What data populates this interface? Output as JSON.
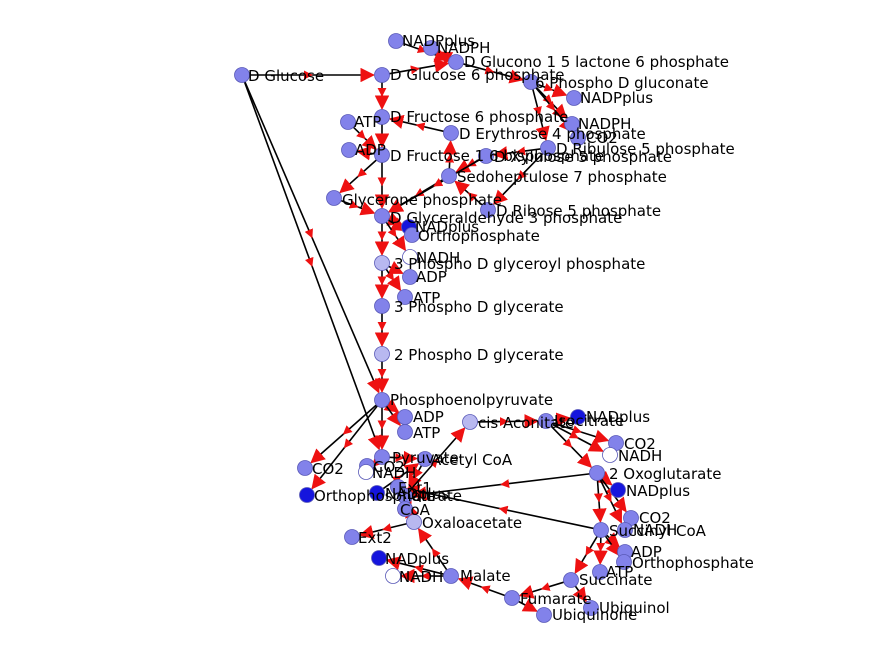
{
  "colors": {
    "edge": "#000000",
    "arrow": "#ee1111",
    "node_default": "#8282ea",
    "node_light": "#b8b8f0",
    "node_dark": "#1515dd",
    "node_white": "#ffffff",
    "node_stroke": "#5a5ab8"
  },
  "nodes": [
    {
      "id": "D_Glucose",
      "label": "D Glucose",
      "shade": "node_default"
    },
    {
      "id": "G6P",
      "label": "D Glucose 6 phosphate",
      "shade": "node_default"
    },
    {
      "id": "NADPplus1",
      "label": "NADPplus",
      "shade": "node_default"
    },
    {
      "id": "NADPH1",
      "label": "NADPH",
      "shade": "node_default"
    },
    {
      "id": "GL6P",
      "label": "D Glucono 1 5 lactone 6 phosphate",
      "shade": "node_default"
    },
    {
      "id": "PG6",
      "label": "6 Phospho D gluconate",
      "shade": "node_default"
    },
    {
      "id": "NADPplus2",
      "label": "NADPplus",
      "shade": "node_default"
    },
    {
      "id": "NADPH2",
      "label": "NADPH",
      "shade": "node_default"
    },
    {
      "id": "CO2a",
      "label": "CO2",
      "shade": "node_default"
    },
    {
      "id": "Ru5P",
      "label": "D Ribulose 5 phosphate",
      "shade": "node_default"
    },
    {
      "id": "Xu5P",
      "label": "D Xylulose 5 phosphate",
      "shade": "node_default"
    },
    {
      "id": "F6P",
      "label": "D Fructose 6 phosphate",
      "shade": "node_default"
    },
    {
      "id": "ATP1",
      "label": "ATP",
      "shade": "node_default"
    },
    {
      "id": "ADP1",
      "label": "ADP",
      "shade": "node_default"
    },
    {
      "id": "FBP",
      "label": "D Fructose 1 6 bisphosphate",
      "shade": "node_default"
    },
    {
      "id": "E4P",
      "label": "D Erythrose 4 phosphate",
      "shade": "node_default"
    },
    {
      "id": "S7P",
      "label": "Sedoheptulose 7 phosphate",
      "shade": "node_default"
    },
    {
      "id": "DHAP",
      "label": "Glycerone phosphate",
      "shade": "node_default"
    },
    {
      "id": "GAP",
      "label": "D Glyceraldehyde 3 phosphate",
      "shade": "node_default"
    },
    {
      "id": "R5P",
      "label": "D Ribose 5 phosphate",
      "shade": "node_default"
    },
    {
      "id": "NADplus1",
      "label": "NADplus",
      "shade": "node_dark"
    },
    {
      "id": "Pi1",
      "label": "Orthophosphate",
      "shade": "node_default"
    },
    {
      "id": "NADH1",
      "label": "NADH",
      "shade": "node_white"
    },
    {
      "id": "BPG",
      "label": "3 Phospho D glyceroyl phosphate",
      "shade": "node_light"
    },
    {
      "id": "ADP2",
      "label": "ADP",
      "shade": "node_default"
    },
    {
      "id": "ATP2",
      "label": "ATP",
      "shade": "node_default"
    },
    {
      "id": "PG3",
      "label": "3 Phospho D glycerate",
      "shade": "node_default"
    },
    {
      "id": "PG2",
      "label": "2 Phospho D glycerate",
      "shade": "node_light"
    },
    {
      "id": "PEP",
      "label": "Phosphoenolpyruvate",
      "shade": "node_default"
    },
    {
      "id": "ADP3",
      "label": "ADP",
      "shade": "node_default"
    },
    {
      "id": "ATP3",
      "label": "ATP",
      "shade": "node_default"
    },
    {
      "id": "CisAc",
      "label": "cis Aconitate",
      "shade": "node_light"
    },
    {
      "id": "Isocit",
      "label": "Isocitrate",
      "shade": "node_default"
    },
    {
      "id": "NADplus2",
      "label": "NADplus",
      "shade": "node_dark"
    },
    {
      "id": "CO2b",
      "label": "CO2",
      "shade": "node_default"
    },
    {
      "id": "NADH2",
      "label": "NADH",
      "shade": "node_white"
    },
    {
      "id": "OxoGlu",
      "label": "2 Oxoglutarate",
      "shade": "node_default"
    },
    {
      "id": "NADplus3",
      "label": "NADplus",
      "shade": "node_dark"
    },
    {
      "id": "CO2c",
      "label": "CO2",
      "shade": "node_default"
    },
    {
      "id": "NADH3",
      "label": "NADH",
      "shade": "node_default"
    },
    {
      "id": "SucCoA",
      "label": "Succinyl CoA",
      "shade": "node_default"
    },
    {
      "id": "ADP4",
      "label": "ADP",
      "shade": "node_default"
    },
    {
      "id": "Pi2",
      "label": "Orthophosphate",
      "shade": "node_default"
    },
    {
      "id": "ATP4",
      "label": "ATP",
      "shade": "node_default"
    },
    {
      "id": "Succ",
      "label": "Succinate",
      "shade": "node_default"
    },
    {
      "id": "Ubiquinol",
      "label": "Ubiquinol",
      "shade": "node_default"
    },
    {
      "id": "Fum",
      "label": "Fumarate",
      "shade": "node_default"
    },
    {
      "id": "Ubiquinone",
      "label": "Ubiquinone",
      "shade": "node_default"
    },
    {
      "id": "Mal",
      "label": "Malate",
      "shade": "node_default"
    },
    {
      "id": "NADplus4",
      "label": "NADplus",
      "shade": "node_dark"
    },
    {
      "id": "NADH4",
      "label": "NADH",
      "shade": "node_white"
    },
    {
      "id": "OAA",
      "label": "Oxaloacetate",
      "shade": "node_light"
    },
    {
      "id": "Ext2",
      "label": "Ext2",
      "shade": "node_default"
    },
    {
      "id": "Pyr",
      "label": "Pyruvate",
      "shade": "node_default"
    },
    {
      "id": "CO2d",
      "label": "CO2",
      "shade": "node_default"
    },
    {
      "id": "AcCoA",
      "label": "Acetyl CoA",
      "shade": "node_default"
    },
    {
      "id": "NADH5",
      "label": "NADH",
      "shade": "node_white"
    },
    {
      "id": "NADplus5",
      "label": "NADplus",
      "shade": "node_dark"
    },
    {
      "id": "Ext1",
      "label": "Ext1",
      "shade": "node_default"
    },
    {
      "id": "Citrate",
      "label": "Citrate",
      "shade": "node_default"
    },
    {
      "id": "CoA",
      "label": "CoA",
      "shade": "node_default"
    },
    {
      "id": "CO2e",
      "label": "CO2",
      "shade": "node_default"
    },
    {
      "id": "Pi3",
      "label": "Orthophosphate",
      "shade": "node_dark"
    }
  ],
  "edges": [
    [
      "D_Glucose",
      "G6P"
    ],
    [
      "G6P",
      "GL6P"
    ],
    [
      "NADPplus1",
      "GL6P"
    ],
    [
      "GL6P",
      "NADPH1"
    ],
    [
      "GL6P",
      "PG6"
    ],
    [
      "PG6",
      "NADPplus2"
    ],
    [
      "PG6",
      "NADPH2"
    ],
    [
      "PG6",
      "CO2a"
    ],
    [
      "PG6",
      "Ru5P"
    ],
    [
      "Ru5P",
      "Xu5P"
    ],
    [
      "Ru5P",
      "R5P"
    ],
    [
      "G6P",
      "F6P"
    ],
    [
      "F6P",
      "FBP"
    ],
    [
      "ATP1",
      "FBP"
    ],
    [
      "FBP",
      "ADP1"
    ],
    [
      "FBP",
      "DHAP"
    ],
    [
      "FBP",
      "GAP"
    ],
    [
      "DHAP",
      "GAP"
    ],
    [
      "Xu5P",
      "S7P"
    ],
    [
      "R5P",
      "S7P"
    ],
    [
      "S7P",
      "GAP"
    ],
    [
      "S7P",
      "E4P"
    ],
    [
      "E4P",
      "F6P"
    ],
    [
      "Xu5P",
      "GAP"
    ],
    [
      "GAP",
      "NADplus1"
    ],
    [
      "GAP",
      "Pi1"
    ],
    [
      "GAP",
      "NADH1"
    ],
    [
      "GAP",
      "BPG"
    ],
    [
      "BPG",
      "ADP2"
    ],
    [
      "BPG",
      "ATP2"
    ],
    [
      "BPG",
      "PG3"
    ],
    [
      "PG3",
      "PG2"
    ],
    [
      "PG2",
      "PEP"
    ],
    [
      "PEP",
      "ADP3"
    ],
    [
      "PEP",
      "ATP3"
    ],
    [
      "PEP",
      "Pyr"
    ],
    [
      "D_Glucose",
      "PEP"
    ],
    [
      "D_Glucose",
      "Pyr"
    ],
    [
      "Pyr",
      "CO2d"
    ],
    [
      "Pyr",
      "AcCoA"
    ],
    [
      "Pyr",
      "NADH5"
    ],
    [
      "NADplus5",
      "AcCoA"
    ],
    [
      "AcCoA",
      "Citrate"
    ],
    [
      "OAA",
      "Citrate"
    ],
    [
      "Citrate",
      "CoA"
    ],
    [
      "Citrate",
      "CisAc"
    ],
    [
      "CisAc",
      "Isocit"
    ],
    [
      "Isocit",
      "NADplus2"
    ],
    [
      "Isocit",
      "CO2b"
    ],
    [
      "Isocit",
      "NADH2"
    ],
    [
      "Isocit",
      "OxoGlu"
    ],
    [
      "OxoGlu",
      "NADplus3"
    ],
    [
      "OxoGlu",
      "CO2c"
    ],
    [
      "OxoGlu",
      "NADH3"
    ],
    [
      "OxoGlu",
      "SucCoA"
    ],
    [
      "SucCoA",
      "ADP4"
    ],
    [
      "SucCoA",
      "Pi2"
    ],
    [
      "SucCoA",
      "ATP4"
    ],
    [
      "SucCoA",
      "Succ"
    ],
    [
      "Succ",
      "Ubiquinol"
    ],
    [
      "Succ",
      "Fum"
    ],
    [
      "Fum",
      "Ubiquinone"
    ],
    [
      "Fum",
      "Mal"
    ],
    [
      "Mal",
      "NADplus4"
    ],
    [
      "Mal",
      "NADH4"
    ],
    [
      "Mal",
      "OAA"
    ],
    [
      "OAA",
      "Ext2"
    ],
    [
      "Ext1",
      "OAA"
    ],
    [
      "PEP",
      "CO2e"
    ],
    [
      "PEP",
      "Pi3"
    ],
    [
      "OxoGlu",
      "Citrate"
    ],
    [
      "SucCoA",
      "Ext1"
    ]
  ]
}
